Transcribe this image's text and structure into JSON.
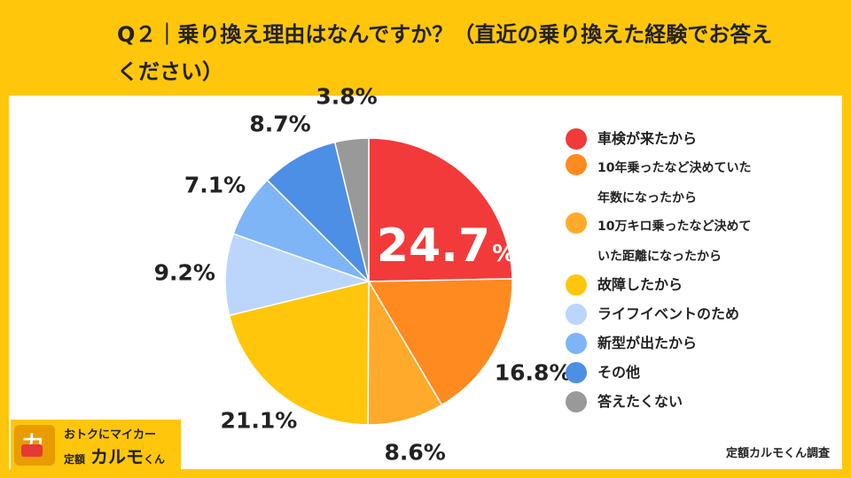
{
  "title": "Q２｜乗り換え理由はなんですか？（直近の乗り換えた経験でお答えください）",
  "colors": {
    "background": "#FFC60B",
    "panel": "#FFFFFF"
  },
  "chart_data": {
    "type": "pie",
    "title": "Q２｜乗り換え理由はなんですか？（直近の乗り換えた経験でお答えください）",
    "start": "12 o'clock, clockwise",
    "slices": [
      {
        "label": "車検が来たから",
        "value": 24.7,
        "display": "24.7",
        "unit": "%",
        "color": "#F23A3A"
      },
      {
        "label": "10年乗ったなど決めていた年数になったから",
        "value": 16.8,
        "display": "16.8%",
        "color": "#FF8A1F"
      },
      {
        "label": "10万キロ乗ったなど決めていた距離になったから",
        "value": 8.6,
        "display": "8.6%",
        "color": "#FFAA2A"
      },
      {
        "label": "故障したから",
        "value": 21.1,
        "display": "21.1%",
        "color": "#FFC60B"
      },
      {
        "label": "ライフイベントのため",
        "value": 9.2,
        "display": "9.2%",
        "color": "#BCD6FB"
      },
      {
        "label": "新型が出たから",
        "value": 7.1,
        "display": "7.1%",
        "color": "#7DB5F7"
      },
      {
        "label": "その他",
        "value": 8.7,
        "display": "8.7%",
        "color": "#4D8FE4"
      },
      {
        "label": "答えたくない",
        "value": 3.8,
        "display": "3.8%",
        "color": "#999999"
      }
    ]
  },
  "legend": {
    "items": [
      {
        "label": "車検が来たから"
      },
      {
        "label": "10年乗ったなど決めていた\n年数になったから"
      },
      {
        "label": "10万キロ乗ったなど決めて\nいた距離になったから"
      },
      {
        "label": "故障したから"
      },
      {
        "label": "ライフイベントのため"
      },
      {
        "label": "新型が出たから"
      },
      {
        "label": "その他"
      },
      {
        "label": "答えたくない"
      }
    ]
  },
  "source": "定額カルモくん調査",
  "logo": {
    "tagline": "おトクにマイカー",
    "prefix": "定額",
    "name": "カルモ",
    "suffix": "くん"
  }
}
